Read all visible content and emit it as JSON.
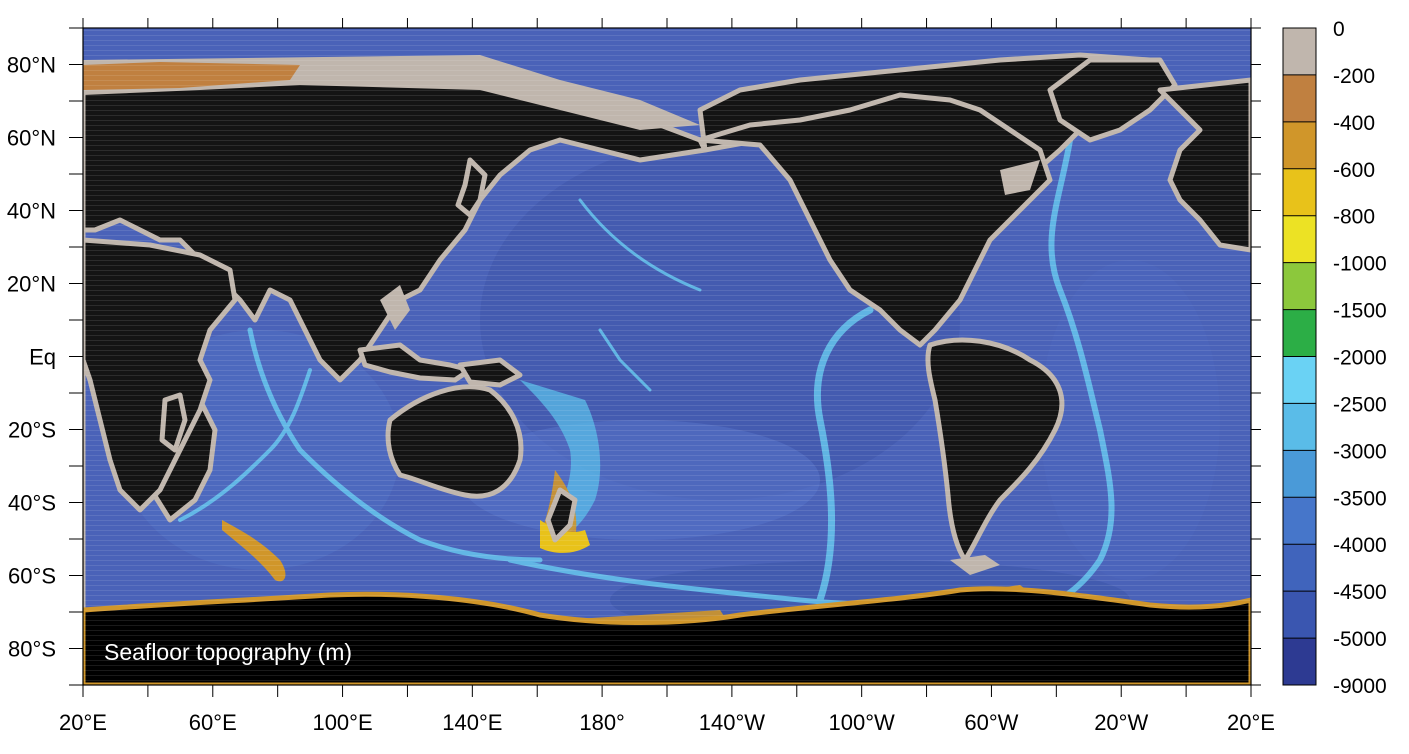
{
  "map": {
    "title": "Seafloor topography (m)",
    "projection": "equirectangular",
    "x_axis": {
      "range": [
        20,
        380
      ],
      "labeled_ticks": [
        "20°E",
        "60°E",
        "100°E",
        "140°E",
        "180°",
        "140°W",
        "100°W",
        "60°W",
        "20°W",
        "20°E"
      ],
      "labeled_tick_values": [
        20,
        60,
        100,
        140,
        180,
        220,
        260,
        300,
        340,
        380
      ],
      "minor_tick_step": 20
    },
    "y_axis": {
      "range": [
        -90,
        90
      ],
      "labeled_ticks": [
        "80°N",
        "60°N",
        "40°N",
        "20°N",
        "Eq",
        "20°S",
        "40°S",
        "60°S",
        "80°S"
      ],
      "labeled_tick_values": [
        80,
        60,
        40,
        20,
        0,
        -20,
        -40,
        -60,
        -80
      ],
      "minor_tick_step": 10
    }
  },
  "colorbar": {
    "labels": [
      "0",
      "-200",
      "-400",
      "-600",
      "-800",
      "-1000",
      "-1500",
      "-2000",
      "-2500",
      "-3000",
      "-3500",
      "-4000",
      "-4500",
      "-5000",
      "-9000"
    ],
    "colors": [
      "#c0b6ad",
      "#c08040",
      "#d0962a",
      "#e8c21a",
      "#ece224",
      "#8cc83c",
      "#2cae46",
      "#6ad2f4",
      "#5abce8",
      "#4a9ad8",
      "#4676ca",
      "#4064bc",
      "#3a56b0",
      "#2d3a92"
    ]
  },
  "colors": {
    "land": "#141414",
    "antarctica": "#000000",
    "ocean_deep": "#4a62b8",
    "ocean_mid": "#5a80cc",
    "shelf": "#c0b6ad",
    "ridge": "#6ad2f4",
    "scanline": "#9a9a9a"
  }
}
